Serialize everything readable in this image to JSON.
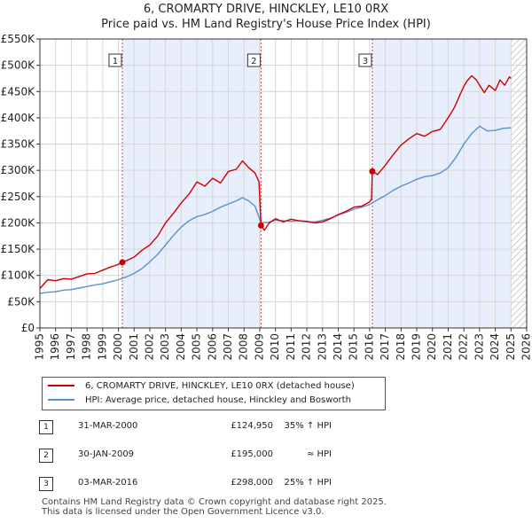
{
  "chart_data": {
    "type": "line",
    "title": "6, CROMARTY DRIVE, HINCKLEY, LE10 0RX",
    "subtitle": "Price paid vs. HM Land Registry's House Price Index (HPI)",
    "xlim": [
      1995,
      2026
    ],
    "ylim": [
      0,
      550000
    ],
    "x_ticks": [
      "1995",
      "1996",
      "1997",
      "1998",
      "1999",
      "2000",
      "2001",
      "2002",
      "2003",
      "2004",
      "2005",
      "2006",
      "2007",
      "2008",
      "2009",
      "2010",
      "2011",
      "2012",
      "2013",
      "2014",
      "2015",
      "2016",
      "2017",
      "2018",
      "2019",
      "2020",
      "2021",
      "2022",
      "2023",
      "2024",
      "2025",
      "2026"
    ],
    "x_tick_values": [
      1995,
      1996,
      1997,
      1998,
      1999,
      2000,
      2001,
      2002,
      2003,
      2004,
      2005,
      2006,
      2007,
      2008,
      2009,
      2010,
      2011,
      2012,
      2013,
      2014,
      2015,
      2016,
      2017,
      2018,
      2019,
      2020,
      2021,
      2022,
      2023,
      2024,
      2025,
      2026
    ],
    "y_ticks": [
      "£0",
      "£50K",
      "£100K",
      "£150K",
      "£200K",
      "£250K",
      "£300K",
      "£350K",
      "£400K",
      "£450K",
      "£500K",
      "£550K"
    ],
    "y_tick_values": [
      0,
      50000,
      100000,
      150000,
      200000,
      250000,
      300000,
      350000,
      400000,
      450000,
      500000,
      550000
    ],
    "grid": true,
    "shaded_periods": [
      [
        2000.25,
        2009.08
      ],
      [
        2016.17,
        2025.0
      ]
    ],
    "hatched_period": [
      2025.0,
      2026.0
    ],
    "series": [
      {
        "name": "6, CROMARTY DRIVE, HINCKLEY, LE10 0RX (detached house)",
        "color": "#cc0000",
        "x": [
          1995.0,
          1995.5,
          1996.0,
          1996.5,
          1997.0,
          1997.5,
          1998.0,
          1998.5,
          1999.0,
          1999.5,
          2000.0,
          2000.25,
          2000.5,
          2001.0,
          2001.5,
          2002.0,
          2002.5,
          2003.0,
          2003.5,
          2004.0,
          2004.5,
          2005.0,
          2005.5,
          2006.0,
          2006.5,
          2007.0,
          2007.5,
          2007.9,
          2008.3,
          2008.7,
          2008.95,
          2009.08,
          2009.3,
          2009.6,
          2010.0,
          2010.5,
          2011.0,
          2011.5,
          2012.0,
          2012.5,
          2013.0,
          2013.5,
          2014.0,
          2014.5,
          2015.0,
          2015.5,
          2016.0,
          2016.12,
          2016.17,
          2016.5,
          2017.0,
          2017.5,
          2018.0,
          2018.5,
          2019.0,
          2019.5,
          2020.0,
          2020.5,
          2021.0,
          2021.4,
          2021.7,
          2022.0,
          2022.2,
          2022.5,
          2022.8,
          2023.0,
          2023.3,
          2023.6,
          2024.0,
          2024.3,
          2024.6,
          2024.9,
          2025.0
        ],
        "y": [
          75000,
          92000,
          90000,
          94000,
          93000,
          98000,
          103000,
          104000,
          110000,
          116000,
          121000,
          124950,
          128000,
          135000,
          148000,
          158000,
          175000,
          200000,
          218000,
          238000,
          255000,
          278000,
          270000,
          285000,
          276000,
          298000,
          302000,
          318000,
          305000,
          295000,
          278000,
          195000,
          186000,
          200000,
          208000,
          202000,
          207000,
          204000,
          203000,
          200000,
          202000,
          208000,
          216000,
          222000,
          230000,
          232000,
          240000,
          245000,
          298000,
          292000,
          310000,
          330000,
          348000,
          360000,
          370000,
          365000,
          374000,
          378000,
          400000,
          420000,
          440000,
          460000,
          470000,
          480000,
          472000,
          462000,
          448000,
          462000,
          452000,
          472000,
          462000,
          478000,
          475000
        ]
      },
      {
        "name": "HPI: Average price, detached house, Hinckley and Bosworth",
        "color": "#5b8fd4",
        "x": [
          1995.0,
          1995.5,
          1996.0,
          1996.5,
          1997.0,
          1997.5,
          1998.0,
          1998.5,
          1999.0,
          1999.5,
          2000.0,
          2000.5,
          2001.0,
          2001.5,
          2002.0,
          2002.5,
          2003.0,
          2003.5,
          2004.0,
          2004.5,
          2005.0,
          2005.5,
          2006.0,
          2006.5,
          2007.0,
          2007.5,
          2007.9,
          2008.3,
          2008.7,
          2009.08,
          2009.5,
          2010.0,
          2010.5,
          2011.0,
          2011.5,
          2012.0,
          2012.5,
          2013.0,
          2013.5,
          2014.0,
          2014.5,
          2015.0,
          2015.5,
          2016.0,
          2016.5,
          2017.0,
          2017.5,
          2018.0,
          2018.5,
          2019.0,
          2019.5,
          2020.0,
          2020.5,
          2021.0,
          2021.5,
          2022.0,
          2022.5,
          2023.0,
          2023.5,
          2024.0,
          2024.5,
          2025.0
        ],
        "y": [
          66000,
          68000,
          69000,
          72000,
          73000,
          76000,
          79000,
          82000,
          84000,
          88000,
          92000,
          97000,
          104000,
          113000,
          126000,
          140000,
          158000,
          176000,
          192000,
          204000,
          212000,
          216000,
          222000,
          230000,
          236000,
          242000,
          248000,
          242000,
          232000,
          200000,
          201000,
          205000,
          204000,
          203000,
          204000,
          202000,
          202000,
          205000,
          209000,
          215000,
          220000,
          226000,
          230000,
          235000,
          244000,
          252000,
          262000,
          270000,
          276000,
          283000,
          288000,
          290000,
          295000,
          305000,
          325000,
          350000,
          370000,
          384000,
          375000,
          376000,
          380000,
          381000
        ]
      }
    ],
    "sale_markers": [
      {
        "label": "1",
        "x": 2000.25,
        "y": 124950
      },
      {
        "label": "2",
        "x": 2009.08,
        "y": 195000
      },
      {
        "label": "3",
        "x": 2016.17,
        "y": 298000
      }
    ]
  },
  "legend": {
    "property_label": "6, CROMARTY DRIVE, HINCKLEY, LE10 0RX (detached house)",
    "hpi_label": "HPI: Average price, detached house, Hinckley and Bosworth"
  },
  "sales": [
    {
      "num": "1",
      "date": "31-MAR-2000",
      "price": "£124,950",
      "hpi": "35% ↑ HPI"
    },
    {
      "num": "2",
      "date": "30-JAN-2009",
      "price": "£195,000",
      "hpi": "≈ HPI"
    },
    {
      "num": "3",
      "date": "03-MAR-2016",
      "price": "£298,000",
      "hpi": "25% ↑ HPI"
    }
  ],
  "footer": {
    "line1": "Contains HM Land Registry data © Crown copyright and database right 2025.",
    "line2": "This data is licensed under the Open Government Licence v3.0."
  }
}
